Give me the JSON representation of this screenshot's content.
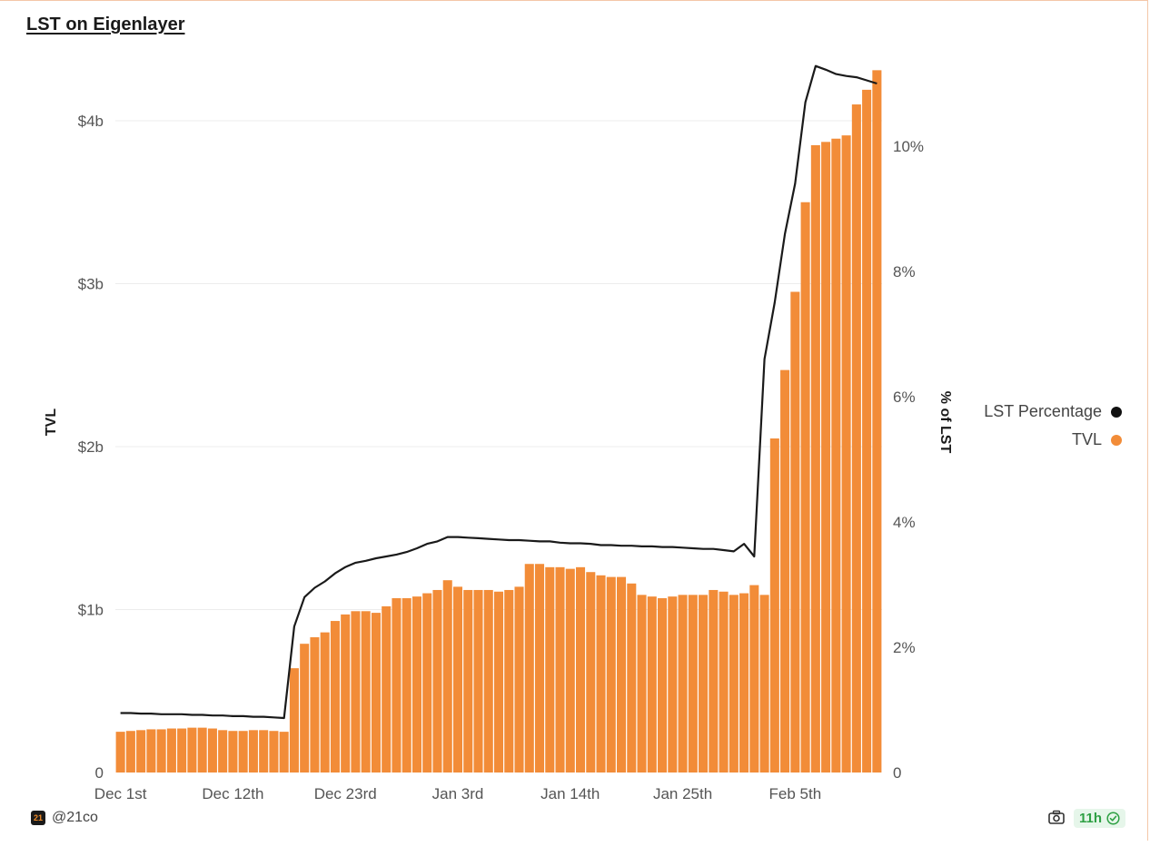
{
  "title": "LST on Eigenlayer",
  "chart_data": {
    "type": "bar",
    "title": "LST on Eigenlayer",
    "x_ticks": [
      "Dec 1st",
      "Dec 12th",
      "Dec 23rd",
      "Jan 3rd",
      "Jan 14th",
      "Jan 25th",
      "Feb 5th"
    ],
    "y_left": {
      "label": "TVL",
      "ticks": [
        "0",
        "$1b",
        "$2b",
        "$3b",
        "$4b"
      ],
      "tick_values": [
        0,
        1,
        2,
        3,
        4
      ],
      "range": [
        0,
        4.3
      ],
      "unit": "billion USD"
    },
    "y_right": {
      "label": "% of LST",
      "ticks": [
        "0",
        "2%",
        "4%",
        "6%",
        "8%",
        "10%"
      ],
      "tick_values": [
        0,
        2,
        4,
        6,
        8,
        10
      ],
      "range": [
        0,
        11.3
      ]
    },
    "grid": true,
    "legend_position": "right",
    "series": [
      {
        "name": "TVL",
        "type": "bar",
        "axis": "left",
        "color": "#f28c38",
        "values": [
          0.25,
          0.255,
          0.26,
          0.265,
          0.265,
          0.27,
          0.27,
          0.275,
          0.275,
          0.27,
          0.26,
          0.255,
          0.255,
          0.26,
          0.26,
          0.255,
          0.25,
          0.64,
          0.79,
          0.83,
          0.86,
          0.93,
          0.97,
          0.99,
          0.99,
          0.98,
          1.02,
          1.07,
          1.07,
          1.08,
          1.1,
          1.12,
          1.18,
          1.14,
          1.12,
          1.12,
          1.12,
          1.11,
          1.12,
          1.14,
          1.28,
          1.28,
          1.26,
          1.26,
          1.25,
          1.26,
          1.23,
          1.21,
          1.2,
          1.2,
          1.16,
          1.09,
          1.08,
          1.07,
          1.08,
          1.09,
          1.09,
          1.09,
          1.12,
          1.11,
          1.09,
          1.1,
          1.15,
          1.09,
          2.05,
          2.47,
          2.95,
          3.5,
          3.85,
          3.87,
          3.89,
          3.91,
          4.1,
          4.19,
          4.31
        ]
      },
      {
        "name": "LST Percentage",
        "type": "line",
        "axis": "right",
        "color": "#1a1a1a",
        "values": [
          0.95,
          0.95,
          0.94,
          0.94,
          0.93,
          0.93,
          0.93,
          0.92,
          0.92,
          0.91,
          0.91,
          0.9,
          0.9,
          0.89,
          0.89,
          0.88,
          0.87,
          2.33,
          2.8,
          2.95,
          3.05,
          3.18,
          3.28,
          3.35,
          3.38,
          3.42,
          3.45,
          3.48,
          3.52,
          3.58,
          3.65,
          3.69,
          3.76,
          3.76,
          3.75,
          3.74,
          3.73,
          3.72,
          3.71,
          3.71,
          3.7,
          3.69,
          3.69,
          3.67,
          3.66,
          3.66,
          3.65,
          3.63,
          3.63,
          3.62,
          3.62,
          3.61,
          3.61,
          3.6,
          3.6,
          3.59,
          3.58,
          3.57,
          3.57,
          3.55,
          3.53,
          3.65,
          3.45,
          6.6,
          7.5,
          8.6,
          9.4,
          10.7,
          11.28,
          11.22,
          11.15,
          11.12,
          11.1,
          11.05,
          11.0
        ]
      }
    ]
  },
  "legend": {
    "items": [
      {
        "label": "LST Percentage",
        "color": "#111111"
      },
      {
        "label": "TVL",
        "color": "#f28c38"
      }
    ]
  },
  "footer": {
    "brand_logo_text": "21",
    "brand_handle": "@21co",
    "refresh_badge": "11h",
    "camera_icon": "camera-icon",
    "status_icon": "check-circle-icon"
  }
}
